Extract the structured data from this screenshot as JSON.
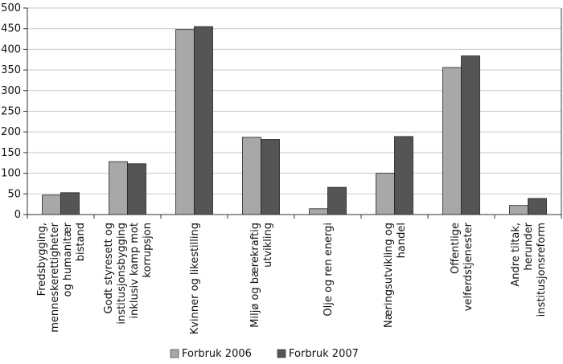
{
  "chart_data": {
    "type": "bar",
    "categories": [
      [
        "Fredsbygging,",
        "menneskerettigheter",
        "og humanitær",
        "bistand"
      ],
      [
        "Godt styresett og",
        "institusjonsbygging",
        "inklusiv kamp mot",
        "korrupsjon"
      ],
      [
        "Kvinner og likestilling"
      ],
      [
        "Miljø og bærekraftig",
        "utvikling"
      ],
      [
        "Olje og ren energi"
      ],
      [
        "Næringsutvikling og",
        "handel"
      ],
      [
        "Offentlige",
        "velferdstjenester"
      ],
      [
        "Andre tiltak,",
        "herunder",
        "institusjonsreform"
      ]
    ],
    "series": [
      {
        "name": "Forbruk 2006",
        "color": "#a8a8a8",
        "values": [
          47,
          128,
          448,
          187,
          14,
          100,
          356,
          22
        ]
      },
      {
        "name": "Forbruk 2007",
        "color": "#555555",
        "values": [
          53,
          123,
          455,
          182,
          66,
          189,
          384,
          39
        ]
      }
    ],
    "ylim": [
      0,
      500
    ],
    "yticks": [
      "0",
      "50",
      "100",
      "150",
      "200",
      "250",
      "300",
      "350",
      "400",
      "450",
      "500"
    ],
    "grid": true,
    "legend_position": "bottom"
  }
}
